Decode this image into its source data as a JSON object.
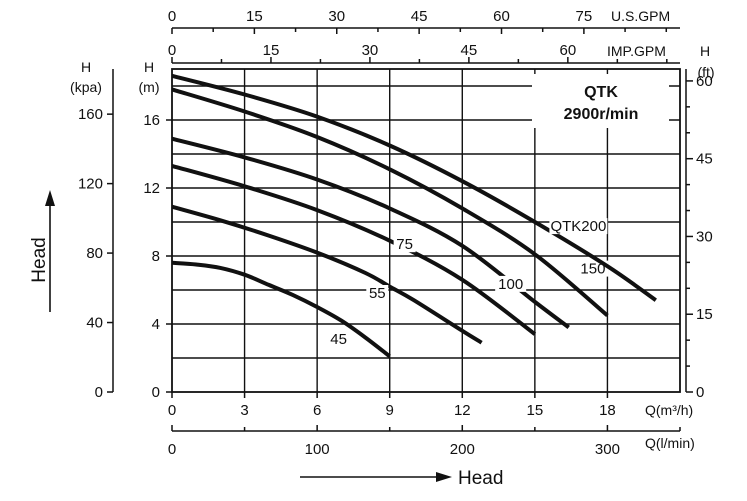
{
  "chart_data": {
    "type": "line",
    "title": "QTK",
    "subtitle": "2900r/min",
    "x_axes": {
      "bottom_primary": {
        "label": "Q(m³/h)",
        "ticks": [
          0,
          3,
          6,
          9,
          12,
          15,
          18
        ],
        "range": [
          0,
          21
        ]
      },
      "bottom_secondary": {
        "label": "Q(l/min)",
        "ticks": [
          0,
          100,
          200,
          300
        ],
        "range": [
          0,
          350
        ]
      },
      "top_usgpm": {
        "label": "U.S.GPM",
        "ticks": [
          0,
          15,
          30,
          45,
          60,
          75
        ],
        "range": [
          0,
          92.5
        ]
      },
      "top_impgpm": {
        "label": "IMP.GPM",
        "ticks": [
          0,
          15,
          30,
          45,
          60
        ],
        "range": [
          0,
          77
        ]
      }
    },
    "y_axes": {
      "left_m": {
        "label": "H",
        "unit": "(m)",
        "ticks": [
          0,
          4,
          8,
          12,
          16
        ],
        "range": [
          0,
          19
        ]
      },
      "left_kpa": {
        "label": "H",
        "unit": "(kpa)",
        "ticks": [
          0,
          40,
          80,
          120,
          160
        ],
        "range": [
          0,
          186
        ]
      },
      "right_ft": {
        "label": "H",
        "unit": "(ft)",
        "ticks": [
          0,
          15,
          30,
          45,
          60
        ],
        "range": [
          0,
          62.3
        ]
      }
    },
    "side_labels": {
      "vertical": "Head",
      "horizontal": "Head"
    },
    "grid": true,
    "legend": "top-right",
    "series": [
      {
        "name": "45",
        "x": [
          0,
          1,
          2,
          3,
          4,
          5,
          6,
          7,
          8,
          9
        ],
        "y": [
          7.6,
          7.5,
          7.3,
          6.9,
          6.3,
          5.7,
          5.0,
          4.2,
          3.2,
          2.1
        ]
      },
      {
        "name": "55",
        "x": [
          0,
          2,
          4,
          6,
          8,
          9,
          10,
          12,
          12.8
        ],
        "y": [
          10.9,
          10.1,
          9.2,
          8.2,
          7.0,
          6.2,
          5.4,
          3.6,
          2.9
        ]
      },
      {
        "name": "75",
        "x": [
          0,
          3,
          6,
          9,
          12,
          15
        ],
        "y": [
          13.3,
          12.1,
          10.7,
          8.9,
          6.6,
          3.4
        ]
      },
      {
        "name": "100",
        "x": [
          0,
          3,
          6,
          9,
          12,
          15,
          16.4
        ],
        "y": [
          14.9,
          13.8,
          12.5,
          10.8,
          8.6,
          5.3,
          3.8
        ]
      },
      {
        "name": "150",
        "x": [
          0,
          3,
          6,
          9,
          12,
          15,
          18
        ],
        "y": [
          17.8,
          16.5,
          15.0,
          13.1,
          10.8,
          8.1,
          4.5
        ]
      },
      {
        "name": "QTK200",
        "x": [
          0,
          3,
          6,
          9,
          12,
          15,
          18,
          20
        ],
        "y": [
          18.6,
          17.5,
          16.2,
          14.5,
          12.4,
          10.0,
          7.4,
          5.4
        ]
      }
    ]
  }
}
